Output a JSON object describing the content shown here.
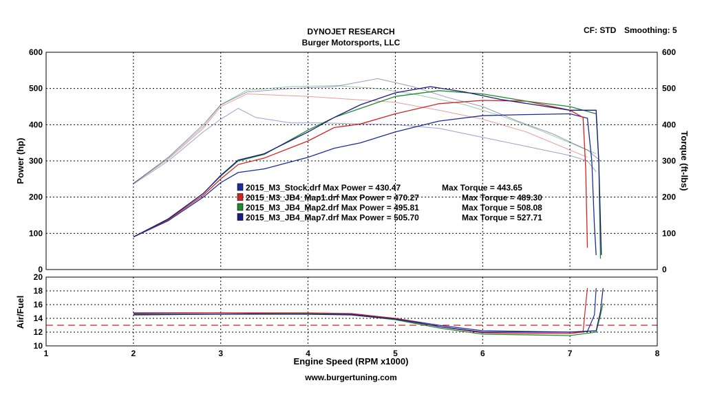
{
  "header": {
    "title": "DYNOJET RESEARCH",
    "subtitle": "Burger Motorsports, LLC",
    "cf": "CF: STD",
    "smoothing": "Smoothing: 5",
    "footer": "www.burgertuning.com"
  },
  "chart_data": [
    {
      "type": "line",
      "name": "power-torque",
      "xlabel": "Engine Speed (RPM x1000)",
      "ylabel_left": "Power (hp)",
      "ylabel_right": "Torque (ft-lbs)",
      "xlim": [
        1,
        8
      ],
      "ylim_left": [
        0,
        600
      ],
      "ylim_right": [
        0,
        600
      ],
      "x_ticks": [
        1,
        2,
        3,
        4,
        5,
        6,
        7,
        8
      ],
      "y_ticks": [
        0,
        100,
        200,
        300,
        400,
        500,
        600
      ],
      "grid": true,
      "legend_position": "center",
      "series": [
        {
          "name": "2015_M3_Stock.drf",
          "legend": "2015_M3_Stock.drf Max Power = 430.47",
          "max_power_label": "Max Power = 430.47",
          "max_torque_label": "Max Torque = 443.65",
          "color": "#1c2a9e",
          "power": [
            [
              2.0,
              90
            ],
            [
              2.4,
              135
            ],
            [
              2.8,
              200
            ],
            [
              3.0,
              240
            ],
            [
              3.2,
              268
            ],
            [
              3.5,
              278
            ],
            [
              4.0,
              310
            ],
            [
              4.3,
              335
            ],
            [
              4.6,
              350
            ],
            [
              5.0,
              380
            ],
            [
              5.5,
              410
            ],
            [
              6.0,
              425
            ],
            [
              6.5,
              428
            ],
            [
              7.0,
              430
            ],
            [
              7.2,
              418
            ],
            [
              7.25,
              300
            ],
            [
              7.28,
              120
            ],
            [
              7.3,
              40
            ]
          ],
          "torque": [
            [
              2.0,
              236
            ],
            [
              2.4,
              300
            ],
            [
              2.8,
              380
            ],
            [
              3.0,
              415
            ],
            [
              3.2,
              445
            ],
            [
              3.4,
              420
            ],
            [
              3.8,
              405
            ],
            [
              4.2,
              405
            ],
            [
              4.6,
              402
            ],
            [
              5.0,
              400
            ],
            [
              5.5,
              390
            ],
            [
              6.0,
              365
            ],
            [
              6.5,
              340
            ],
            [
              7.0,
              315
            ],
            [
              7.2,
              300
            ],
            [
              7.3,
              270
            ]
          ]
        },
        {
          "name": "2015_M3_JB4_Map1.drf",
          "legend": "2015_M3_JB4_Map1.drf Max Power = 470.27",
          "max_power_label": "Max Power = 470.27",
          "max_torque_label": "Max Torque = 489.30",
          "color": "#d42020",
          "power": [
            [
              2.0,
              90
            ],
            [
              2.4,
              138
            ],
            [
              2.8,
              205
            ],
            [
              3.0,
              250
            ],
            [
              3.2,
              290
            ],
            [
              3.5,
              308
            ],
            [
              4.0,
              355
            ],
            [
              4.3,
              392
            ],
            [
              4.6,
              402
            ],
            [
              5.0,
              430
            ],
            [
              5.5,
              458
            ],
            [
              6.0,
              467
            ],
            [
              6.5,
              465
            ],
            [
              7.0,
              440
            ],
            [
              7.15,
              420
            ],
            [
              7.18,
              280
            ],
            [
              7.2,
              60
            ]
          ],
          "torque": [
            [
              2.0,
              238
            ],
            [
              2.4,
              305
            ],
            [
              2.8,
              390
            ],
            [
              3.0,
              450
            ],
            [
              3.3,
              485
            ],
            [
              3.6,
              482
            ],
            [
              4.0,
              478
            ],
            [
              4.5,
              470
            ],
            [
              5.0,
              462
            ],
            [
              5.5,
              440
            ],
            [
              6.0,
              415
            ],
            [
              6.5,
              380
            ],
            [
              7.0,
              330
            ],
            [
              7.2,
              310
            ]
          ]
        },
        {
          "name": "2015_M3_JB4_Map2.drf",
          "legend": "2015_M3_JB4_Map2.drf Max Power = 495.81",
          "max_power_label": "Max Power = 495.81",
          "max_torque_label": "Max Torque = 508.08",
          "color": "#1e8a2e",
          "power": [
            [
              2.0,
              90
            ],
            [
              2.4,
              140
            ],
            [
              2.8,
              210
            ],
            [
              3.0,
              258
            ],
            [
              3.2,
              300
            ],
            [
              3.5,
              318
            ],
            [
              4.0,
              385
            ],
            [
              4.3,
              420
            ],
            [
              4.6,
              445
            ],
            [
              5.0,
              478
            ],
            [
              5.5,
              494
            ],
            [
              6.0,
              485
            ],
            [
              6.5,
              465
            ],
            [
              7.0,
              450
            ],
            [
              7.3,
              430
            ],
            [
              7.33,
              300
            ],
            [
              7.35,
              30
            ]
          ],
          "torque": [
            [
              2.0,
              238
            ],
            [
              2.4,
              308
            ],
            [
              2.8,
              395
            ],
            [
              3.0,
              455
            ],
            [
              3.3,
              495
            ],
            [
              3.8,
              505
            ],
            [
              4.3,
              508
            ],
            [
              4.8,
              500
            ],
            [
              5.2,
              485
            ],
            [
              5.8,
              455
            ],
            [
              6.2,
              425
            ],
            [
              6.6,
              390
            ],
            [
              7.0,
              350
            ],
            [
              7.3,
              320
            ]
          ]
        },
        {
          "name": "2015_M3_JB4_Map7.drf",
          "legend": "2015_M3_JB4_Map7.drf Max Power = 505.70",
          "max_power_label": "Max Power = 505.70",
          "max_torque_label": "Max Torque = 527.71",
          "color": "#1a1a80",
          "power": [
            [
              2.0,
              90
            ],
            [
              2.4,
              140
            ],
            [
              2.8,
              210
            ],
            [
              3.0,
              260
            ],
            [
              3.2,
              302
            ],
            [
              3.5,
              320
            ],
            [
              4.0,
              380
            ],
            [
              4.3,
              420
            ],
            [
              4.6,
              455
            ],
            [
              5.0,
              488
            ],
            [
              5.4,
              505
            ],
            [
              5.8,
              490
            ],
            [
              6.2,
              470
            ],
            [
              6.6,
              455
            ],
            [
              7.0,
              440
            ],
            [
              7.3,
              440
            ],
            [
              7.33,
              300
            ],
            [
              7.36,
              40
            ]
          ],
          "torque": [
            [
              2.0,
              238
            ],
            [
              2.4,
              310
            ],
            [
              2.8,
              400
            ],
            [
              3.0,
              455
            ],
            [
              3.3,
              490
            ],
            [
              3.8,
              500
            ],
            [
              4.3,
              505
            ],
            [
              4.8,
              527
            ],
            [
              5.2,
              505
            ],
            [
              5.6,
              475
            ],
            [
              6.0,
              450
            ],
            [
              6.4,
              410
            ],
            [
              6.8,
              375
            ],
            [
              7.2,
              330
            ],
            [
              7.35,
              300
            ]
          ]
        }
      ]
    },
    {
      "type": "line",
      "name": "air-fuel",
      "ylabel": "Air/Fuel",
      "ylim": [
        10,
        20
      ],
      "y_ticks": [
        10,
        12,
        14,
        16,
        18,
        20
      ],
      "reference_line": 13,
      "reference_color": "#d42020",
      "series": [
        {
          "name": "2015_M3_Stock.drf",
          "color": "#1c2a9e",
          "values": [
            [
              2.0,
              14.8
            ],
            [
              3.0,
              14.8
            ],
            [
              4.0,
              14.7
            ],
            [
              4.5,
              14.6
            ],
            [
              5.0,
              14.0
            ],
            [
              5.5,
              13.0
            ],
            [
              6.0,
              12.2
            ],
            [
              6.5,
              12.1
            ],
            [
              7.0,
              12.0
            ],
            [
              7.2,
              12.1
            ],
            [
              7.28,
              14.5
            ],
            [
              7.3,
              18.4
            ]
          ]
        },
        {
          "name": "2015_M3_JB4_Map1.drf",
          "color": "#d42020",
          "values": [
            [
              2.0,
              14.7
            ],
            [
              3.0,
              14.8
            ],
            [
              4.0,
              14.8
            ],
            [
              4.5,
              14.7
            ],
            [
              5.0,
              14.0
            ],
            [
              5.5,
              12.8
            ],
            [
              6.0,
              11.9
            ],
            [
              6.5,
              11.8
            ],
            [
              7.0,
              11.8
            ],
            [
              7.15,
              12.0
            ],
            [
              7.18,
              16.0
            ],
            [
              7.2,
              18.4
            ]
          ]
        },
        {
          "name": "2015_M3_JB4_Map2.drf",
          "color": "#1e8a2e",
          "values": [
            [
              2.0,
              14.6
            ],
            [
              3.0,
              14.6
            ],
            [
              4.0,
              14.7
            ],
            [
              4.5,
              14.5
            ],
            [
              5.0,
              13.8
            ],
            [
              5.5,
              12.6
            ],
            [
              6.0,
              11.7
            ],
            [
              6.5,
              11.6
            ],
            [
              7.0,
              11.5
            ],
            [
              7.3,
              12.0
            ],
            [
              7.35,
              14.5
            ],
            [
              7.38,
              16.2
            ]
          ]
        },
        {
          "name": "2015_M3_JB4_Map7.drf",
          "color": "#1a1a80",
          "values": [
            [
              2.0,
              14.5
            ],
            [
              3.0,
              14.6
            ],
            [
              4.0,
              14.6
            ],
            [
              4.5,
              14.5
            ],
            [
              5.0,
              13.9
            ],
            [
              5.5,
              12.8
            ],
            [
              6.0,
              12.0
            ],
            [
              6.5,
              12.0
            ],
            [
              7.0,
              12.0
            ],
            [
              7.3,
              12.2
            ],
            [
              7.35,
              15.0
            ],
            [
              7.38,
              18.4
            ]
          ]
        }
      ]
    }
  ]
}
